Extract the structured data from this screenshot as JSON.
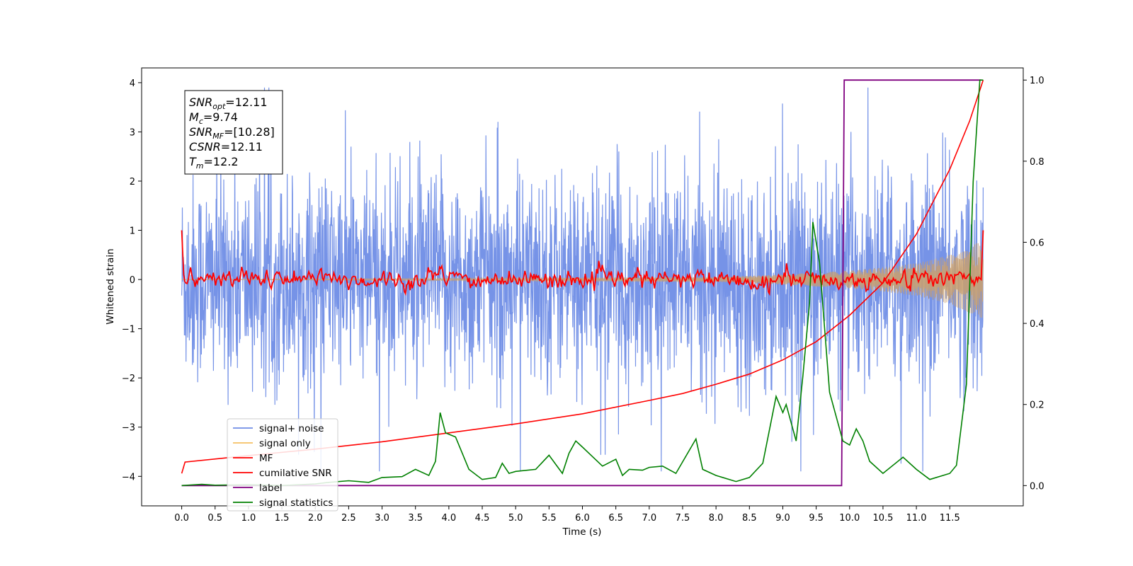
{
  "chart_data": {
    "type": "line",
    "xlabel": "Time (s)",
    "ylabel": "Whitened strain",
    "xlim": [
      -0.6,
      12.6
    ],
    "ylim": [
      -4.6,
      4.3
    ],
    "y2lim": [
      -0.05,
      1.03
    ],
    "x_ticks": [
      "0.0",
      "0.5",
      "1.0",
      "1.5",
      "2.0",
      "2.5",
      "3.0",
      "3.5",
      "4.0",
      "4.5",
      "5.0",
      "5.5",
      "6.0",
      "6.5",
      "7.0",
      "7.5",
      "8.0",
      "8.5",
      "9.0",
      "9.5",
      "10.0",
      "10.5",
      "11.0",
      "11.5"
    ],
    "x_tick_values": [
      0,
      0.5,
      1,
      1.5,
      2,
      2.5,
      3,
      3.5,
      4,
      4.5,
      5,
      5.5,
      6,
      6.5,
      7,
      7.5,
      8,
      8.5,
      9,
      9.5,
      10,
      10.5,
      11,
      11.5
    ],
    "y_ticks": [
      "4",
      "3",
      "2",
      "1",
      "0",
      "−1",
      "−2",
      "−3",
      "−4"
    ],
    "y_tick_values": [
      4,
      3,
      2,
      1,
      0,
      -1,
      -2,
      -3,
      -4
    ],
    "y2_ticks": [
      "1.0",
      "0.8",
      "0.6",
      "0.4",
      "0.2",
      "0.0"
    ],
    "y2_tick_values": [
      1.0,
      0.8,
      0.6,
      0.4,
      0.2,
      0.0
    ],
    "grid": false,
    "legend_placement": "lower-left",
    "stats_box": [
      {
        "sym": "SNR",
        "sub": "opt",
        "value": "=12.11"
      },
      {
        "sym": "M",
        "sub": "c",
        "value": "=9.74"
      },
      {
        "sym": "SNR",
        "sub": "MF",
        "value": "=[10.28]"
      },
      {
        "sym": "CSNR",
        "sub": "",
        "value": "=12.11"
      },
      {
        "sym": "T",
        "sub": "m",
        "value": "=12.2"
      }
    ],
    "series": [
      {
        "name": "signal+ noise",
        "color": "#6f8de6",
        "axis": "left",
        "description": "whitened data, noise band approx ±1.9 with spikes to ±4",
        "envelope_y": [
          -3.9,
          3.9
        ],
        "x_range": [
          0,
          12.0
        ]
      },
      {
        "name": "signal only",
        "color": "#f5c163",
        "axis": "left",
        "x": [
          8.0,
          9.0,
          10.0,
          10.5,
          11.0,
          11.5,
          12.0
        ],
        "amplitude": [
          0.05,
          0.1,
          0.18,
          0.25,
          0.33,
          0.5,
          0.8
        ]
      },
      {
        "name": "MF",
        "color": "#ff0000",
        "axis": "left",
        "x_range": [
          0,
          12.0
        ],
        "start_value": 1.0,
        "end_value": 1.0,
        "noise_amplitude": 0.1
      },
      {
        "name": "cumilative SNR",
        "color": "#ff0000",
        "axis": "right",
        "x": [
          0.0,
          0.05,
          1.0,
          2.0,
          3.0,
          4.0,
          5.0,
          6.0,
          7.0,
          7.5,
          8.0,
          8.5,
          9.0,
          9.5,
          10.0,
          10.5,
          11.0,
          11.5,
          11.8,
          12.0
        ],
        "y": [
          0.03,
          0.058,
          0.074,
          0.09,
          0.108,
          0.13,
          0.152,
          0.177,
          0.21,
          0.227,
          0.25,
          0.275,
          0.31,
          0.355,
          0.42,
          0.5,
          0.62,
          0.78,
          0.9,
          1.0
        ]
      },
      {
        "name": "label",
        "color": "#800080",
        "axis": "right",
        "x": [
          0.0,
          9.88,
          9.92,
          11.97,
          11.97
        ],
        "y": [
          0.0,
          0.0,
          1.0,
          1.0,
          0.0
        ]
      },
      {
        "name": "signal statistics",
        "color": "#008000",
        "axis": "right",
        "x": [
          0.0,
          0.3,
          0.5,
          1.0,
          1.5,
          2.0,
          2.2,
          2.5,
          2.8,
          3.0,
          3.3,
          3.5,
          3.7,
          3.8,
          3.87,
          3.95,
          4.1,
          4.3,
          4.5,
          4.7,
          4.8,
          4.9,
          5.0,
          5.3,
          5.5,
          5.7,
          5.8,
          5.9,
          6.0,
          6.3,
          6.5,
          6.6,
          6.7,
          6.9,
          7.0,
          7.2,
          7.4,
          7.7,
          7.8,
          8.0,
          8.3,
          8.5,
          8.7,
          8.9,
          9.0,
          9.05,
          9.2,
          9.3,
          9.4,
          9.45,
          9.55,
          9.7,
          9.8,
          9.9,
          10.0,
          10.1,
          10.2,
          10.3,
          10.5,
          10.8,
          11.0,
          11.2,
          11.5,
          11.6,
          11.75,
          11.85,
          11.95,
          12.0
        ],
        "y": [
          0.0,
          0.003,
          0.001,
          0.002,
          0.0,
          0.004,
          0.008,
          0.012,
          0.008,
          0.02,
          0.022,
          0.04,
          0.025,
          0.06,
          0.18,
          0.13,
          0.12,
          0.04,
          0.015,
          0.02,
          0.055,
          0.03,
          0.035,
          0.04,
          0.075,
          0.03,
          0.08,
          0.11,
          0.095,
          0.048,
          0.065,
          0.025,
          0.04,
          0.038,
          0.045,
          0.048,
          0.03,
          0.115,
          0.04,
          0.025,
          0.01,
          0.02,
          0.055,
          0.22,
          0.18,
          0.2,
          0.11,
          0.27,
          0.45,
          0.65,
          0.55,
          0.23,
          0.17,
          0.11,
          0.1,
          0.14,
          0.11,
          0.06,
          0.03,
          0.07,
          0.04,
          0.015,
          0.03,
          0.05,
          0.25,
          0.75,
          1.0,
          1.0
        ]
      }
    ]
  }
}
